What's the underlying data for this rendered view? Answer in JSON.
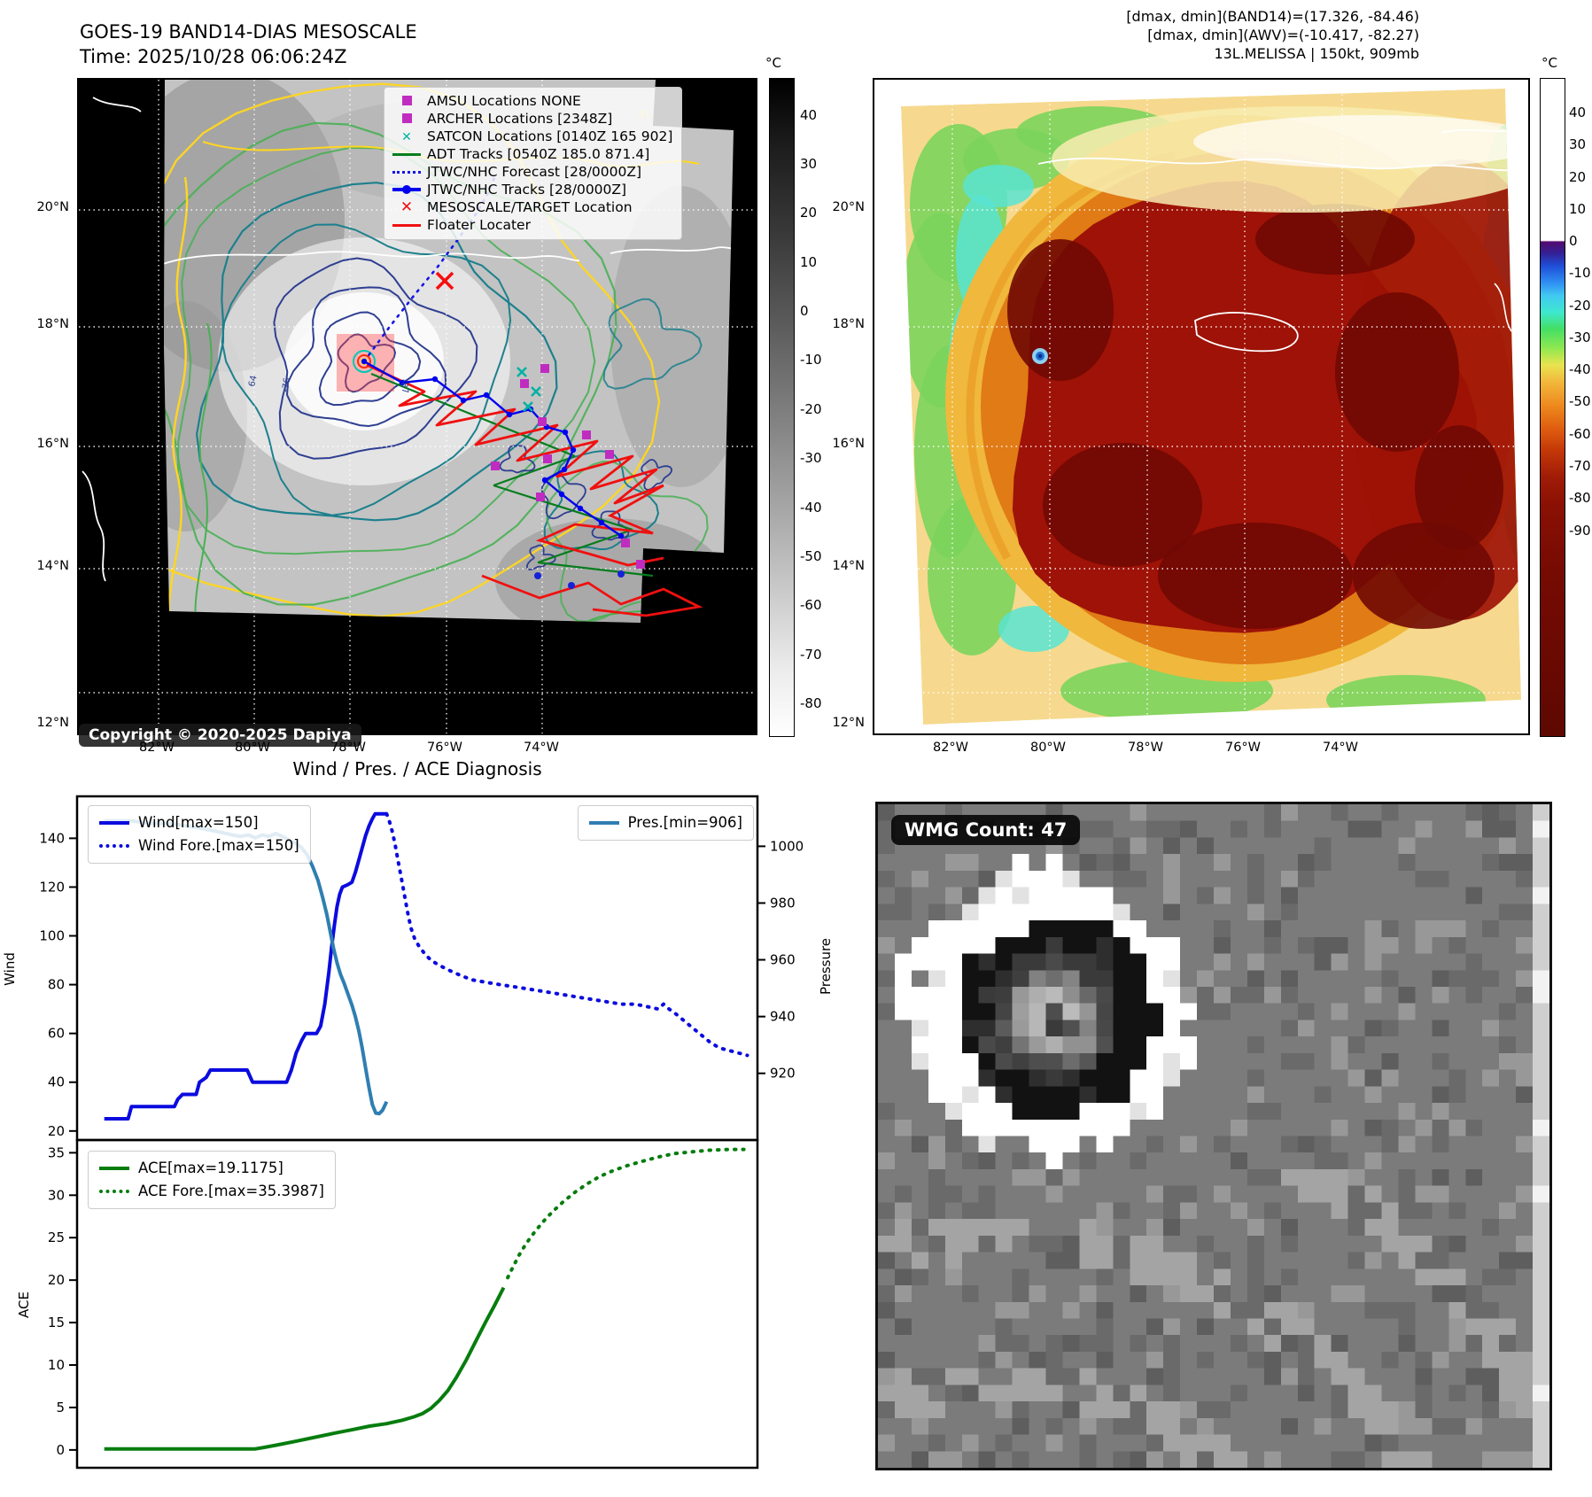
{
  "header": {
    "title": "GOES-19 BAND14-DIAS MESOSCALE",
    "time": "Time: 2025/10/28 06:06:24Z"
  },
  "annotations": {
    "band14": "[dmax, dmin](BAND14)=(17.326, -84.46)",
    "awv": "[dmax, dmin](AWV)=(-10.417, -82.27)",
    "storm": "13L.MELISSA | 150kt, 909mb"
  },
  "left_map": {
    "legend": [
      {
        "marker": "square",
        "color": "#c02cc0",
        "label": "AMSU Locations NONE"
      },
      {
        "marker": "square",
        "color": "#c02cc0",
        "label": "ARCHER Locations [2348Z]"
      },
      {
        "marker": "xmark",
        "color": "#00b2a2",
        "label": "SATCON Locations [0140Z 165 902]"
      },
      {
        "marker": "line",
        "color": "#067d1e",
        "label": "ADT Tracks [0540Z 185.0 871.4]"
      },
      {
        "marker": "dotted",
        "color": "#1515e8",
        "label": "JTWC/NHC Forecast [28/0000Z]"
      },
      {
        "marker": "linedot",
        "color": "#0000ee",
        "label": "JTWC/NHC Tracks [28/0000Z]"
      },
      {
        "marker": "boldx",
        "color": "#f01010",
        "label": "MESOSCALE/TARGET Location"
      },
      {
        "marker": "line",
        "color": "#f01010",
        "label": "Floater Locater"
      }
    ],
    "copyright": "Copyright © 2020-2025 Dapiya",
    "colorbar": {
      "unit": "°C",
      "ticks": [
        40,
        30,
        20,
        10,
        0,
        -10,
        -20,
        -30,
        -40,
        -50,
        -60,
        -70,
        -80
      ]
    },
    "lat_labels": [
      "20°N",
      "18°N",
      "16°N",
      "14°N",
      "12°N"
    ],
    "lon_labels": [
      "82°W",
      "80°W",
      "78°W",
      "76°W",
      "74°W"
    ],
    "contour_labels": [
      "-31",
      "64",
      "-76",
      "-87"
    ]
  },
  "right_map": {
    "colorbar": {
      "unit": "°C",
      "ticks": [
        40,
        30,
        20,
        10,
        0,
        -10,
        -20,
        -30,
        -40,
        -50,
        -60,
        -70,
        -80,
        -90
      ]
    },
    "lat_labels": [
      "20°N",
      "18°N",
      "16°N",
      "14°N",
      "12°N"
    ],
    "lon_labels": [
      "82°W",
      "80°W",
      "78°W",
      "76°W",
      "74°W"
    ]
  },
  "section_title": "Wind / Pres. / ACE Diagnosis",
  "wmg": {
    "label": "WMG Count: 47"
  },
  "chart_data": [
    {
      "type": "line",
      "title": "Wind / Pres. / ACE Diagnosis",
      "ylabel": "Wind",
      "y2label": "Pressure",
      "ylim": [
        16.3,
        157.2
      ],
      "y2lim": [
        896.5,
        1017.6
      ],
      "yticks": [
        20,
        40,
        60,
        80,
        100,
        120,
        140
      ],
      "y2ticks": [
        920,
        940,
        960,
        980,
        1000
      ],
      "grid": false,
      "legend_position": "upper-left and upper-right",
      "series": [
        {
          "name": "Wind[max=150]",
          "axis": "y1",
          "style": "solid",
          "color": "#0b0bdf",
          "points": [
            [
              0.04,
              25
            ],
            [
              0.075,
              25
            ],
            [
              0.08,
              30
            ],
            [
              0.143,
              30
            ],
            [
              0.148,
              33
            ],
            [
              0.155,
              35
            ],
            [
              0.175,
              35
            ],
            [
              0.18,
              40
            ],
            [
              0.19,
              42
            ],
            [
              0.196,
              45
            ],
            [
              0.25,
              45
            ],
            [
              0.258,
              40
            ],
            [
              0.308,
              40
            ],
            [
              0.315,
              45
            ],
            [
              0.322,
              52
            ],
            [
              0.33,
              57
            ],
            [
              0.336,
              60
            ],
            [
              0.352,
              60
            ],
            [
              0.358,
              63
            ],
            [
              0.364,
              72
            ],
            [
              0.37,
              85
            ],
            [
              0.374,
              95
            ],
            [
              0.378,
              104
            ],
            [
              0.382,
              112
            ],
            [
              0.386,
              117
            ],
            [
              0.39,
              120
            ],
            [
              0.398,
              121
            ],
            [
              0.404,
              122
            ],
            [
              0.409,
              126
            ],
            [
              0.414,
              131
            ],
            [
              0.419,
              136
            ],
            [
              0.424,
              141
            ],
            [
              0.429,
              145
            ],
            [
              0.434,
              148
            ],
            [
              0.438,
              150
            ],
            [
              0.455,
              150
            ]
          ]
        },
        {
          "name": "Wind Fore.[max=150]",
          "axis": "y1",
          "style": "dotted",
          "color": "#0b0bdf",
          "points": [
            [
              0.455,
              150
            ],
            [
              0.459,
              147
            ],
            [
              0.463,
              143
            ],
            [
              0.467,
              138
            ],
            [
              0.471,
              132
            ],
            [
              0.475,
              126
            ],
            [
              0.479,
              120
            ],
            [
              0.483,
              114
            ],
            [
              0.487,
              108
            ],
            [
              0.491,
              103
            ],
            [
              0.496,
              99
            ],
            [
              0.502,
              96
            ],
            [
              0.51,
              93
            ],
            [
              0.52,
              90
            ],
            [
              0.532,
              88
            ],
            [
              0.546,
              86
            ],
            [
              0.562,
              84
            ],
            [
              0.58,
              82
            ],
            [
              0.6,
              81
            ],
            [
              0.622,
              80
            ],
            [
              0.645,
              79
            ],
            [
              0.668,
              78
            ],
            [
              0.69,
              77
            ],
            [
              0.712,
              76
            ],
            [
              0.734,
              75
            ],
            [
              0.756,
              74
            ],
            [
              0.778,
              73
            ],
            [
              0.8,
              72
            ],
            [
              0.82,
              72
            ],
            [
              0.838,
              71
            ],
            [
              0.854,
              70
            ],
            [
              0.862,
              72
            ],
            [
              0.87,
              70
            ],
            [
              0.88,
              68
            ],
            [
              0.893,
              65
            ],
            [
              0.906,
              62
            ],
            [
              0.919,
              59
            ],
            [
              0.932,
              56
            ],
            [
              0.945,
              54
            ],
            [
              0.958,
              53
            ],
            [
              0.972,
              52
            ],
            [
              0.985,
              51
            ]
          ]
        },
        {
          "name": "Pres.[min=906]",
          "axis": "y2",
          "style": "solid",
          "color": "#2f7eb2",
          "points": [
            [
              0.04,
              1009
            ],
            [
              0.08,
              1009
            ],
            [
              0.11,
              1008
            ],
            [
              0.14,
              1008
            ],
            [
              0.165,
              1007
            ],
            [
              0.19,
              1006
            ],
            [
              0.21,
              1005
            ],
            [
              0.228,
              1004
            ],
            [
              0.24,
              1003.5
            ],
            [
              0.252,
              1004
            ],
            [
              0.262,
              1003
            ],
            [
              0.272,
              1004
            ],
            [
              0.282,
              1003.5
            ],
            [
              0.292,
              1004.5
            ],
            [
              0.302,
              1003.5
            ],
            [
              0.312,
              1002
            ],
            [
              0.322,
              1001
            ],
            [
              0.33,
              999.5
            ],
            [
              0.338,
              997
            ],
            [
              0.346,
              993
            ],
            [
              0.354,
              988
            ],
            [
              0.361,
              982
            ],
            [
              0.367,
              976
            ],
            [
              0.372,
              970
            ],
            [
              0.377,
              964
            ],
            [
              0.382,
              959
            ],
            [
              0.387,
              955
            ],
            [
              0.392,
              952
            ],
            [
              0.398,
              948
            ],
            [
              0.404,
              944
            ],
            [
              0.409,
              940
            ],
            [
              0.414,
              935
            ],
            [
              0.419,
              929
            ],
            [
              0.424,
              922
            ],
            [
              0.429,
              915
            ],
            [
              0.434,
              909
            ],
            [
              0.439,
              906
            ],
            [
              0.444,
              905.8
            ],
            [
              0.449,
              907
            ],
            [
              0.455,
              910
            ]
          ]
        }
      ]
    },
    {
      "type": "line",
      "ylabel": "ACE",
      "ylim": [
        -2.1,
        36.5
      ],
      "yticks": [
        0,
        5,
        10,
        15,
        20,
        25,
        30,
        35
      ],
      "grid": false,
      "legend_position": "upper-left",
      "series": [
        {
          "name": "ACE[max=19.1175]",
          "axis": "y1",
          "style": "solid",
          "color": "#067d0e",
          "points": [
            [
              0.04,
              0.12
            ],
            [
              0.12,
              0.12
            ],
            [
              0.2,
              0.12
            ],
            [
              0.262,
              0.12
            ],
            [
              0.275,
              0.3
            ],
            [
              0.295,
              0.6
            ],
            [
              0.32,
              1.0
            ],
            [
              0.35,
              1.5
            ],
            [
              0.38,
              2.0
            ],
            [
              0.405,
              2.4
            ],
            [
              0.43,
              2.8
            ],
            [
              0.455,
              3.1
            ],
            [
              0.478,
              3.5
            ],
            [
              0.495,
              3.9
            ],
            [
              0.508,
              4.3
            ],
            [
              0.52,
              4.9
            ],
            [
              0.532,
              5.8
            ],
            [
              0.545,
              7.0
            ],
            [
              0.558,
              8.6
            ],
            [
              0.572,
              10.6
            ],
            [
              0.586,
              12.8
            ],
            [
              0.6,
              15.0
            ],
            [
              0.614,
              17.1
            ],
            [
              0.627,
              19.1175
            ]
          ]
        },
        {
          "name": "ACE Fore.[max=35.3987]",
          "axis": "y1",
          "style": "dotted",
          "color": "#067d0e",
          "points": [
            [
              0.633,
              20.3
            ],
            [
              0.641,
              21.6
            ],
            [
              0.65,
              23.0
            ],
            [
              0.66,
              24.3
            ],
            [
              0.671,
              25.5
            ],
            [
              0.684,
              26.8
            ],
            [
              0.698,
              28.0
            ],
            [
              0.714,
              29.2
            ],
            [
              0.731,
              30.3
            ],
            [
              0.749,
              31.3
            ],
            [
              0.768,
              32.2
            ],
            [
              0.788,
              32.9
            ],
            [
              0.809,
              33.5
            ],
            [
              0.831,
              34.0
            ],
            [
              0.854,
              34.5
            ],
            [
              0.878,
              34.9
            ],
            [
              0.903,
              35.1
            ],
            [
              0.929,
              35.3
            ],
            [
              0.956,
              35.38
            ],
            [
              0.98,
              35.3987
            ]
          ]
        }
      ]
    }
  ]
}
